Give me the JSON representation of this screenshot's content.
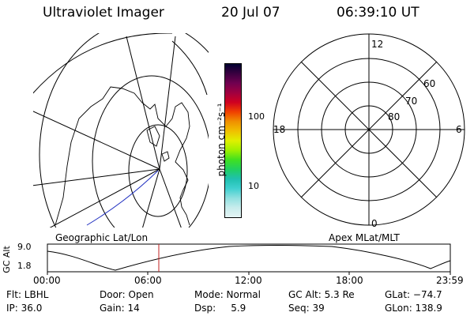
{
  "header": {
    "instrument": "Ultraviolet Imager",
    "date": "20 Jul 07",
    "time": "06:39:10 UT"
  },
  "colorbar": {
    "label": "photon cm⁻²s⁻¹",
    "ticks": [
      "100",
      "10"
    ],
    "colors": [
      "#000030",
      "#3a0040",
      "#700050",
      "#a00040",
      "#d00020",
      "#f04000",
      "#f09000",
      "#f0c000",
      "#e0f000",
      "#a0f000",
      "#40e020",
      "#20d060",
      "#20c0b0",
      "#40d0d0",
      "#90e0e0",
      "#c8ecec",
      "#e4f4f4"
    ]
  },
  "polar": {
    "mlt_labels": {
      "top": "12",
      "left": "18",
      "right": "6",
      "bottom": "0"
    },
    "lat_labels": [
      "60",
      "70",
      "80"
    ]
  },
  "timeline": {
    "left_caption": "Geographic Lat/Lon",
    "right_caption": "Apex MLat/MLT",
    "y_axis_label": "GC Alt",
    "y_ticks": [
      "9.0",
      "1.8"
    ],
    "x_ticks": [
      "00:00",
      "06:00",
      "12:00",
      "18:00",
      "23:59"
    ]
  },
  "status": {
    "filter": "Flt: LBHL",
    "ip": "IP: 36.0",
    "door": "Door: Open",
    "gain": "Gain: 14",
    "mode": "Mode: Normal",
    "dsp": "Dsp:     5.9",
    "gc_alt": "GC Alt: 5.3 Re",
    "seq": "Seq: 39",
    "glat": "GLat: −74.7",
    "glon": "GLon: 138.9"
  }
}
